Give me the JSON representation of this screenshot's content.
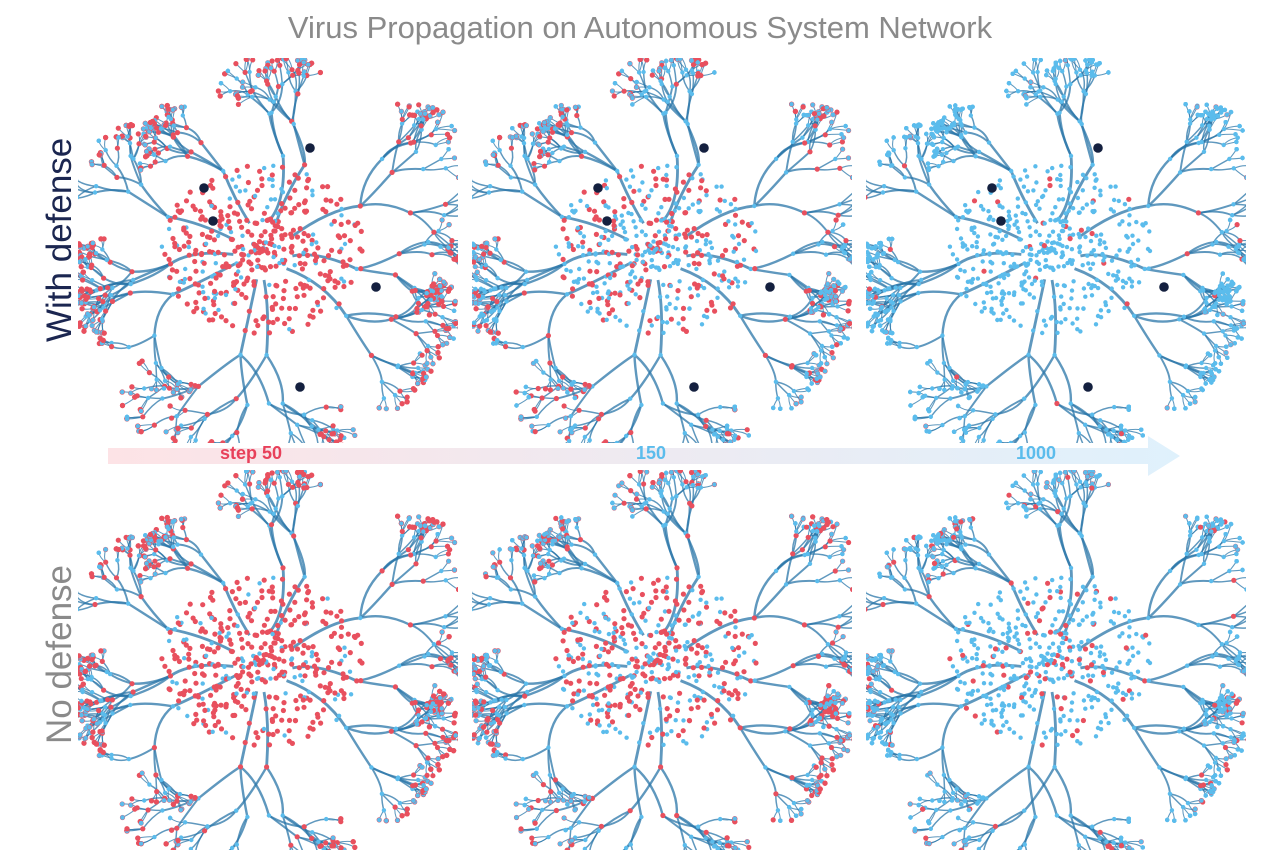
{
  "title": "Virus Propagation on Autonomous System Network",
  "rows": [
    {
      "label": "With defense",
      "color": "#1b2650",
      "defense": true
    },
    {
      "label": "No defense",
      "color": "#8a8a8a",
      "defense": false
    }
  ],
  "timeline": {
    "steps": [
      {
        "label": "step 50",
        "color": "#e8405a"
      },
      {
        "label": "150",
        "color": "#5bbcec"
      },
      {
        "label": "1000",
        "color": "#5bbcec"
      }
    ],
    "gradient_start": "#fde3e6",
    "gradient_end": "#dff1fc"
  },
  "colors": {
    "infected": "#e8505e",
    "susceptible": "#5bbcec",
    "edge": "#2a76a8",
    "defense_node": "#14203f"
  },
  "panels_infected_fraction": [
    [
      0.55,
      0.3,
      0.03
    ],
    [
      0.6,
      0.38,
      0.12
    ]
  ]
}
